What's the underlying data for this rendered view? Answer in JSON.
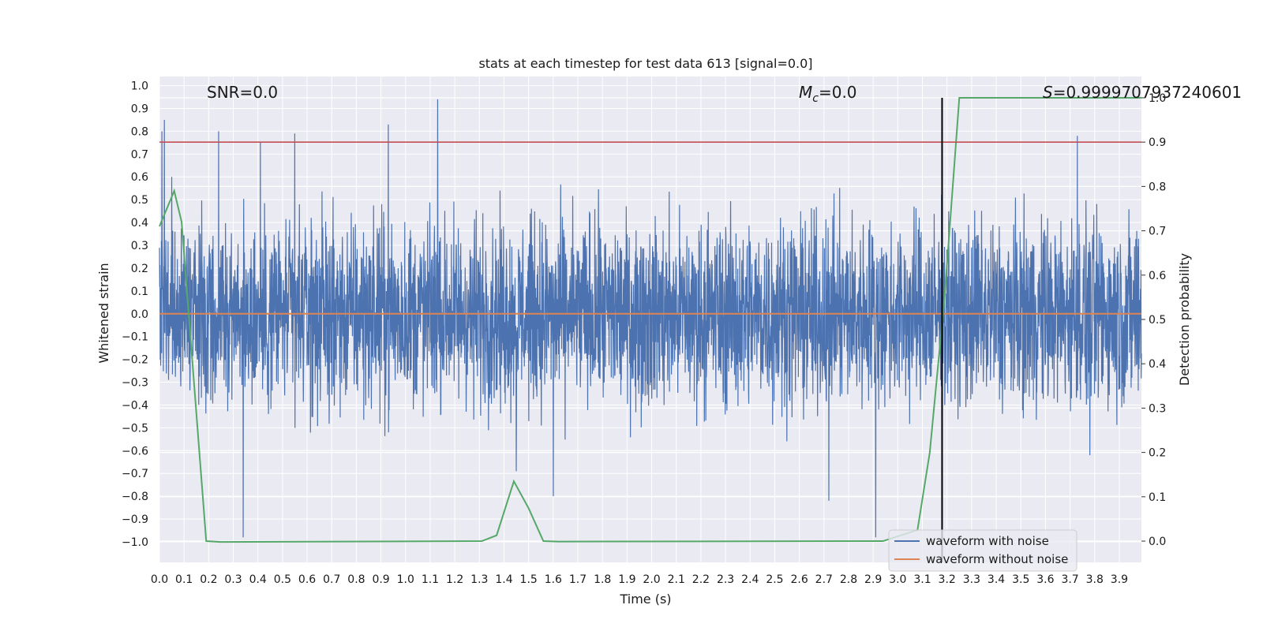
{
  "chart_data": {
    "type": "line",
    "title": "stats at each timestep for test data 613 [signal=0.0]",
    "xlabel": "Time (s)",
    "ylabel": "Whitened strain",
    "y2label": "Detection probability",
    "xlim": [
      0.0,
      3.99
    ],
    "ylim": [
      -1.09,
      1.04
    ],
    "y2lim": [
      -0.048,
      1.048
    ],
    "x_ticks": [
      "0.0",
      "0.1",
      "0.2",
      "0.3",
      "0.4",
      "0.5",
      "0.6",
      "0.7",
      "0.8",
      "0.9",
      "1.0",
      "1.1",
      "1.2",
      "1.3",
      "1.4",
      "1.5",
      "1.6",
      "1.7",
      "1.8",
      "1.9",
      "2.0",
      "2.1",
      "2.2",
      "2.3",
      "2.4",
      "2.5",
      "2.6",
      "2.7",
      "2.8",
      "2.9",
      "3.0",
      "3.1",
      "3.2",
      "3.3",
      "3.4",
      "3.5",
      "3.6",
      "3.7",
      "3.8",
      "3.9"
    ],
    "y_ticks": [
      "1.0",
      "0.9",
      "0.8",
      "0.7",
      "0.6",
      "0.5",
      "0.4",
      "0.3",
      "0.2",
      "0.1",
      "0.0",
      "−0.1",
      "−0.2",
      "−0.3",
      "−0.4",
      "−0.5",
      "−0.6",
      "−0.7",
      "−0.8",
      "−0.9",
      "−1.0"
    ],
    "y2_ticks": [
      "1.0",
      "0.9",
      "0.8",
      "0.7",
      "0.6",
      "0.5",
      "0.4",
      "0.3",
      "0.2",
      "0.1",
      "0.0"
    ],
    "annotations": {
      "snr": "SNR=0.0",
      "mc_symbol": "M",
      "mc_sub": "c",
      "mc_value": "=0.0",
      "s_symbol": "S",
      "s_value": "=0.9999707937240601"
    },
    "threshold": {
      "value": 0.9,
      "axis": "right",
      "color": "#c44e52"
    },
    "vertical_marker": {
      "x": 3.18,
      "color": "#000000"
    },
    "grid": true,
    "background": "#eaeaf2",
    "legend_position": "lower-right",
    "series": [
      {
        "name": "waveform with noise",
        "axis": "left",
        "color": "#4c72b0",
        "kind": "dense noise, mostly within ±0.45",
        "spikes": [
          {
            "x": 0.01,
            "y": 0.8
          },
          {
            "x": 0.02,
            "y": 0.85
          },
          {
            "x": 0.05,
            "y": 0.6
          },
          {
            "x": 0.24,
            "y": 0.8
          },
          {
            "x": 0.34,
            "y": -0.98
          },
          {
            "x": 0.41,
            "y": 0.75
          },
          {
            "x": 0.55,
            "y": 0.79
          },
          {
            "x": 0.93,
            "y": 0.83
          },
          {
            "x": 1.13,
            "y": 0.94
          },
          {
            "x": 1.45,
            "y": -0.69
          },
          {
            "x": 1.6,
            "y": -0.8
          },
          {
            "x": 2.72,
            "y": -0.82
          },
          {
            "x": 2.91,
            "y": -0.98
          },
          {
            "x": 3.73,
            "y": 0.78
          },
          {
            "x": 3.78,
            "y": -0.62
          }
        ]
      },
      {
        "name": "waveform without noise",
        "axis": "left",
        "color": "#dd8452",
        "x": [
          0.0,
          3.99
        ],
        "y": [
          0.0,
          0.0
        ]
      },
      {
        "name": "",
        "axis": "right",
        "color": "#55a868",
        "x": [
          0.0,
          0.06,
          0.09,
          0.19,
          0.25,
          1.31,
          1.37,
          1.44,
          1.5,
          1.56,
          1.62,
          2.94,
          3.08,
          3.13,
          3.19,
          3.25,
          3.99
        ],
        "y": [
          0.71,
          0.79,
          0.72,
          0.0,
          -0.002,
          0.0,
          0.013,
          0.135,
          0.074,
          0.0,
          -0.001,
          0.0,
          0.025,
          0.2,
          0.55,
          1.0,
          1.0
        ]
      }
    ]
  }
}
